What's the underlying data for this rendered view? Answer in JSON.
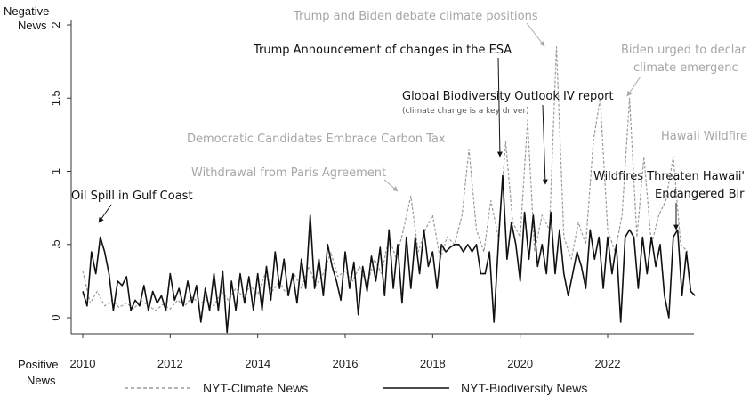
{
  "chart_data": {
    "type": "line",
    "ylabel_top": [
      "Negative",
      "News"
    ],
    "ylabel_bottom": [
      "Positive",
      "News"
    ],
    "x_ticks": [
      "2010",
      "2012",
      "2014",
      "2016",
      "2018",
      "2020",
      "2022"
    ],
    "y_ticks": [
      "0",
      ".5",
      "1",
      "1.5",
      "2"
    ],
    "xlim": [
      2010,
      2024
    ],
    "ylim": [
      0,
      2
    ],
    "series": [
      {
        "name": "NYT-Climate News",
        "style": "dashed",
        "color": "#9a9a9a",
        "points": [
          [
            2010.0,
            0.32
          ],
          [
            2010.17,
            0.1
          ],
          [
            2010.33,
            0.18
          ],
          [
            2010.5,
            0.08
          ],
          [
            2010.67,
            0.12
          ],
          [
            2010.83,
            0.07
          ],
          [
            2011.0,
            0.1
          ],
          [
            2011.17,
            0.06
          ],
          [
            2011.33,
            0.12
          ],
          [
            2011.5,
            0.08
          ],
          [
            2011.67,
            0.05
          ],
          [
            2011.83,
            0.09
          ],
          [
            2012.0,
            0.06
          ],
          [
            2012.17,
            0.12
          ],
          [
            2012.33,
            0.08
          ],
          [
            2012.5,
            0.14
          ],
          [
            2012.67,
            0.1
          ],
          [
            2012.83,
            0.12
          ],
          [
            2013.0,
            0.08
          ],
          [
            2013.17,
            0.18
          ],
          [
            2013.33,
            0.12
          ],
          [
            2013.5,
            0.2
          ],
          [
            2013.67,
            0.14
          ],
          [
            2013.83,
            0.22
          ],
          [
            2014.0,
            0.16
          ],
          [
            2014.17,
            0.3
          ],
          [
            2014.33,
            0.18
          ],
          [
            2014.5,
            0.25
          ],
          [
            2014.67,
            0.15
          ],
          [
            2014.83,
            0.3
          ],
          [
            2015.0,
            0.2
          ],
          [
            2015.17,
            0.35
          ],
          [
            2015.33,
            0.22
          ],
          [
            2015.5,
            0.3
          ],
          [
            2015.67,
            0.45
          ],
          [
            2015.83,
            0.28
          ],
          [
            2016.0,
            0.32
          ],
          [
            2016.17,
            0.25
          ],
          [
            2016.33,
            0.35
          ],
          [
            2016.5,
            0.22
          ],
          [
            2016.67,
            0.4
          ],
          [
            2016.83,
            0.3
          ],
          [
            2017.0,
            0.55
          ],
          [
            2017.17,
            0.4
          ],
          [
            2017.33,
            0.6
          ],
          [
            2017.5,
            0.83
          ],
          [
            2017.67,
            0.45
          ],
          [
            2017.83,
            0.6
          ],
          [
            2018.0,
            0.7
          ],
          [
            2018.17,
            0.4
          ],
          [
            2018.33,
            0.55
          ],
          [
            2018.5,
            0.5
          ],
          [
            2018.67,
            0.7
          ],
          [
            2018.83,
            1.15
          ],
          [
            2019.0,
            0.6
          ],
          [
            2019.17,
            0.45
          ],
          [
            2019.33,
            0.8
          ],
          [
            2019.5,
            0.55
          ],
          [
            2019.67,
            1.2
          ],
          [
            2019.83,
            0.65
          ],
          [
            2020.0,
            0.55
          ],
          [
            2020.17,
            1.35
          ],
          [
            2020.33,
            0.45
          ],
          [
            2020.5,
            0.7
          ],
          [
            2020.67,
            0.6
          ],
          [
            2020.83,
            1.85
          ],
          [
            2021.0,
            0.55
          ],
          [
            2021.17,
            0.4
          ],
          [
            2021.33,
            0.65
          ],
          [
            2021.5,
            0.5
          ],
          [
            2021.67,
            1.2
          ],
          [
            2021.83,
            1.5
          ],
          [
            2022.0,
            0.6
          ],
          [
            2022.17,
            0.45
          ],
          [
            2022.33,
            0.7
          ],
          [
            2022.5,
            1.5
          ],
          [
            2022.67,
            0.55
          ],
          [
            2022.83,
            1.1
          ],
          [
            2023.0,
            0.5
          ],
          [
            2023.17,
            0.7
          ],
          [
            2023.33,
            0.8
          ],
          [
            2023.5,
            1.1
          ],
          [
            2023.67,
            0.5
          ],
          [
            2023.83,
            0.45
          ]
        ]
      },
      {
        "name": "NYT-Biodiversity News",
        "style": "solid",
        "color": "#111111",
        "points": [
          [
            2010.0,
            0.18
          ],
          [
            2010.1,
            0.08
          ],
          [
            2010.2,
            0.45
          ],
          [
            2010.3,
            0.3
          ],
          [
            2010.4,
            0.55
          ],
          [
            2010.5,
            0.45
          ],
          [
            2010.6,
            0.3
          ],
          [
            2010.7,
            0.05
          ],
          [
            2010.8,
            0.25
          ],
          [
            2010.9,
            0.22
          ],
          [
            2011.0,
            0.28
          ],
          [
            2011.1,
            0.05
          ],
          [
            2011.2,
            0.12
          ],
          [
            2011.3,
            0.08
          ],
          [
            2011.4,
            0.22
          ],
          [
            2011.5,
            0.05
          ],
          [
            2011.6,
            0.18
          ],
          [
            2011.7,
            0.1
          ],
          [
            2011.8,
            0.15
          ],
          [
            2011.9,
            0.05
          ],
          [
            2012.0,
            0.3
          ],
          [
            2012.1,
            0.12
          ],
          [
            2012.2,
            0.2
          ],
          [
            2012.3,
            0.08
          ],
          [
            2012.4,
            0.25
          ],
          [
            2012.5,
            0.1
          ],
          [
            2012.6,
            0.22
          ],
          [
            2012.7,
            -0.03
          ],
          [
            2012.8,
            0.2
          ],
          [
            2012.9,
            0.05
          ],
          [
            2013.0,
            0.3
          ],
          [
            2013.1,
            0.05
          ],
          [
            2013.2,
            0.32
          ],
          [
            2013.3,
            -0.1
          ],
          [
            2013.4,
            0.25
          ],
          [
            2013.5,
            0.05
          ],
          [
            2013.6,
            0.3
          ],
          [
            2013.7,
            0.1
          ],
          [
            2013.8,
            0.28
          ],
          [
            2013.9,
            0.05
          ],
          [
            2014.0,
            0.3
          ],
          [
            2014.1,
            0.05
          ],
          [
            2014.2,
            0.35
          ],
          [
            2014.3,
            0.12
          ],
          [
            2014.4,
            0.45
          ],
          [
            2014.5,
            0.2
          ],
          [
            2014.6,
            0.4
          ],
          [
            2014.7,
            0.15
          ],
          [
            2014.8,
            0.3
          ],
          [
            2014.9,
            0.1
          ],
          [
            2015.0,
            0.4
          ],
          [
            2015.1,
            0.2
          ],
          [
            2015.2,
            0.7
          ],
          [
            2015.3,
            0.2
          ],
          [
            2015.4,
            0.4
          ],
          [
            2015.5,
            0.15
          ],
          [
            2015.6,
            0.5
          ],
          [
            2015.7,
            0.35
          ],
          [
            2015.8,
            0.25
          ],
          [
            2015.9,
            0.12
          ],
          [
            2016.0,
            0.45
          ],
          [
            2016.1,
            0.2
          ],
          [
            2016.2,
            0.38
          ],
          [
            2016.3,
            0.02
          ],
          [
            2016.4,
            0.35
          ],
          [
            2016.5,
            0.18
          ],
          [
            2016.6,
            0.42
          ],
          [
            2016.7,
            0.25
          ],
          [
            2016.8,
            0.48
          ],
          [
            2016.9,
            0.15
          ],
          [
            2017.0,
            0.6
          ],
          [
            2017.1,
            0.2
          ],
          [
            2017.2,
            0.5
          ],
          [
            2017.3,
            0.1
          ],
          [
            2017.4,
            0.55
          ],
          [
            2017.5,
            0.2
          ],
          [
            2017.6,
            0.55
          ],
          [
            2017.7,
            0.3
          ],
          [
            2017.8,
            0.6
          ],
          [
            2017.9,
            0.35
          ],
          [
            2018.0,
            0.45
          ],
          [
            2018.1,
            0.2
          ],
          [
            2018.2,
            0.5
          ],
          [
            2018.3,
            0.45
          ],
          [
            2018.4,
            0.48
          ],
          [
            2018.5,
            0.5
          ],
          [
            2018.6,
            0.5
          ],
          [
            2018.7,
            0.45
          ],
          [
            2018.8,
            0.5
          ],
          [
            2018.9,
            0.45
          ],
          [
            2019.0,
            0.5
          ],
          [
            2019.1,
            0.3
          ],
          [
            2019.2,
            0.3
          ],
          [
            2019.3,
            0.45
          ],
          [
            2019.4,
            -0.03
          ],
          [
            2019.5,
            0.5
          ],
          [
            2019.6,
            0.97
          ],
          [
            2019.7,
            0.4
          ],
          [
            2019.8,
            0.65
          ],
          [
            2019.9,
            0.5
          ],
          [
            2020.0,
            0.25
          ],
          [
            2020.1,
            0.72
          ],
          [
            2020.2,
            0.4
          ],
          [
            2020.3,
            0.7
          ],
          [
            2020.4,
            0.35
          ],
          [
            2020.5,
            0.5
          ],
          [
            2020.6,
            0.3
          ],
          [
            2020.7,
            0.72
          ],
          [
            2020.8,
            0.3
          ],
          [
            2020.9,
            0.6
          ],
          [
            2021.0,
            0.3
          ],
          [
            2021.1,
            0.15
          ],
          [
            2021.2,
            0.3
          ],
          [
            2021.3,
            0.45
          ],
          [
            2021.4,
            0.35
          ],
          [
            2021.5,
            0.2
          ],
          [
            2021.6,
            0.6
          ],
          [
            2021.7,
            0.4
          ],
          [
            2021.8,
            0.55
          ],
          [
            2021.9,
            0.2
          ],
          [
            2022.0,
            0.55
          ],
          [
            2022.1,
            0.3
          ],
          [
            2022.2,
            0.5
          ],
          [
            2022.3,
            -0.03
          ],
          [
            2022.4,
            0.55
          ],
          [
            2022.5,
            0.6
          ],
          [
            2022.6,
            0.55
          ],
          [
            2022.7,
            0.2
          ],
          [
            2022.8,
            0.55
          ],
          [
            2022.9,
            0.3
          ],
          [
            2023.0,
            0.55
          ],
          [
            2023.1,
            0.35
          ],
          [
            2023.2,
            0.5
          ],
          [
            2023.3,
            0.15
          ],
          [
            2023.4,
            0.0
          ],
          [
            2023.5,
            0.55
          ],
          [
            2023.6,
            0.6
          ],
          [
            2023.7,
            0.15
          ],
          [
            2023.8,
            0.45
          ],
          [
            2023.9,
            0.18
          ],
          [
            2024.0,
            0.15
          ]
        ]
      }
    ],
    "annotations": [
      {
        "lines": [
          "Trump and Biden debate climate positions"
        ],
        "color": "grey"
      },
      {
        "lines": [
          "Trump Announcement of changes in the ESA"
        ],
        "color": "dark"
      },
      {
        "lines": [
          "Biden urged to declar",
          "climate emergenc"
        ],
        "color": "grey"
      },
      {
        "lines": [
          "Global Biodiversity Outlook IV report"
        ],
        "note": "(climate change is a key driver)",
        "color": "dark"
      },
      {
        "lines": [
          "Hawaii Wildfire"
        ],
        "color": "grey"
      },
      {
        "lines": [
          "Democratic Candidates Embrace Carbon Tax"
        ],
        "color": "grey"
      },
      {
        "lines": [
          "Withdrawal from Paris Agreement"
        ],
        "color": "grey"
      },
      {
        "lines": [
          "Wildfires Threaten Hawaii'",
          "Endangered Bir"
        ],
        "color": "dark"
      },
      {
        "lines": [
          "Oil Spill in Gulf Coast"
        ],
        "color": "dark"
      }
    ],
    "legend": {
      "placement": "bottom"
    }
  }
}
